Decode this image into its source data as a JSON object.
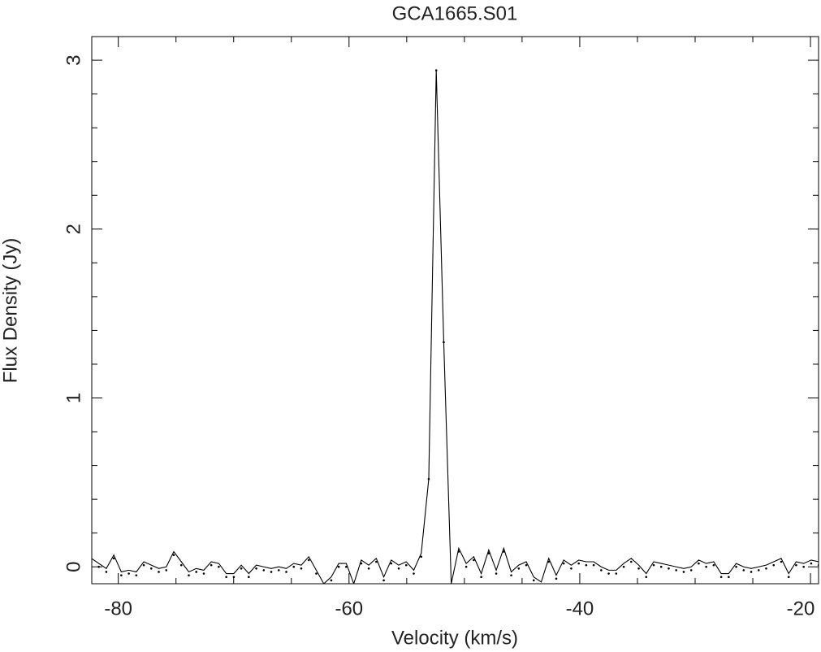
{
  "chart_data": {
    "type": "line",
    "title": "GCA1665.S01",
    "xlabel": "Velocity (km/s)",
    "ylabel": "Flux Density (Jy)",
    "x": [
      -82.34,
      -81.69,
      -81.04,
      -80.39,
      -79.74,
      -79.09,
      -78.44,
      -77.79,
      -77.14,
      -76.49,
      -75.84,
      -75.19,
      -74.54,
      -73.89,
      -73.24,
      -72.59,
      -71.94,
      -71.29,
      -70.64,
      -69.99,
      -69.34,
      -68.69,
      -68.04,
      -67.39,
      -66.74,
      -66.09,
      -65.44,
      -64.79,
      -64.14,
      -63.49,
      -62.84,
      -62.19,
      -61.54,
      -60.89,
      -60.24,
      -59.59,
      -58.94,
      -58.29,
      -57.64,
      -56.99,
      -56.34,
      -55.69,
      -55.04,
      -54.39,
      -53.74,
      -53.09,
      -52.44,
      -51.79,
      -51.14,
      -50.49,
      -49.84,
      -49.19,
      -48.54,
      -47.89,
      -47.24,
      -46.59,
      -45.94,
      -45.29,
      -44.64,
      -43.99,
      -43.34,
      -42.69,
      -42.04,
      -41.39,
      -40.74,
      -40.09,
      -39.44,
      -38.79,
      -38.14,
      -37.49,
      -36.84,
      -36.19,
      -35.54,
      -34.89,
      -34.24,
      -33.59,
      -32.94,
      -32.29,
      -31.64,
      -30.99,
      -30.34,
      -29.69,
      -29.04,
      -28.39,
      -27.74,
      -27.09,
      -26.44,
      -25.79,
      -25.14,
      -24.49,
      -23.84,
      -23.19,
      -22.54,
      -21.89,
      -21.24,
      -20.59,
      -19.94,
      -19.29
    ],
    "series": [
      {
        "color": "#000000",
        "style": "line",
        "values": [
          0.05,
          0.02,
          -0.01,
          0.07,
          -0.03,
          -0.02,
          -0.03,
          0.03,
          0.01,
          -0.01,
          0.0,
          0.09,
          0.03,
          -0.03,
          -0.01,
          -0.02,
          0.03,
          0.02,
          -0.04,
          -0.04,
          0.01,
          -0.04,
          0.01,
          0.0,
          -0.01,
          0.0,
          -0.01,
          0.02,
          0.01,
          0.06,
          -0.02,
          -0.1,
          -0.06,
          0.02,
          0.02,
          -0.1,
          0.04,
          0.01,
          0.05,
          -0.06,
          0.04,
          0.01,
          0.03,
          -0.02,
          0.08,
          0.52,
          2.94,
          1.33,
          -0.1,
          0.11,
          0.02,
          0.06,
          -0.04,
          0.1,
          -0.02,
          0.11,
          -0.03,
          0.01,
          0.03,
          -0.06,
          -0.09,
          0.05,
          -0.05,
          0.04,
          0.01,
          0.04,
          0.03,
          0.03,
          0.0,
          -0.02,
          -0.02,
          0.02,
          0.05,
          0.01,
          -0.04,
          0.03,
          0.02,
          0.01,
          0.0,
          -0.01,
          0.0,
          0.04,
          0.02,
          0.03,
          -0.04,
          -0.04,
          0.02,
          0.0,
          -0.01,
          0.0,
          0.01,
          0.03,
          0.05,
          -0.04,
          0.03,
          0.02,
          0.04,
          0.03
        ]
      },
      {
        "color": "#000000",
        "style": "dots",
        "values": [
          0.03,
          0.0,
          -0.03,
          0.05,
          -0.05,
          -0.04,
          -0.05,
          0.01,
          -0.01,
          -0.03,
          -0.02,
          0.07,
          0.01,
          -0.05,
          -0.03,
          -0.04,
          0.01,
          0.0,
          -0.06,
          -0.06,
          -0.01,
          -0.06,
          -0.01,
          -0.02,
          -0.03,
          -0.02,
          -0.03,
          0.0,
          -0.01,
          0.04,
          -0.04,
          -0.12,
          -0.08,
          0.0,
          0.0,
          -0.12,
          0.02,
          -0.01,
          0.03,
          -0.08,
          0.02,
          -0.01,
          0.01,
          -0.04,
          0.06,
          0.52,
          2.94,
          1.33,
          -0.12,
          0.09,
          0.0,
          0.04,
          -0.06,
          0.08,
          -0.04,
          0.09,
          -0.05,
          -0.01,
          0.01,
          -0.08,
          -0.11,
          0.03,
          -0.07,
          0.02,
          -0.01,
          0.02,
          0.01,
          0.01,
          -0.02,
          -0.04,
          -0.04,
          0.0,
          0.03,
          -0.01,
          -0.06,
          0.01,
          0.0,
          -0.01,
          -0.02,
          -0.03,
          -0.02,
          0.02,
          0.0,
          0.01,
          -0.06,
          -0.06,
          0.0,
          -0.02,
          -0.03,
          -0.02,
          -0.01,
          0.01,
          0.03,
          -0.06,
          0.01,
          0.0,
          0.02,
          0.01
        ]
      }
    ],
    "xlim": [
      -82.3,
      -19.3
    ],
    "ylim": [
      -0.1,
      3.14
    ],
    "xticks": [
      -80,
      -60,
      -40,
      -20
    ],
    "yticks": [
      0,
      1,
      2,
      3
    ],
    "xminorticks": [
      -75,
      -70,
      -65,
      -55,
      -50,
      -45,
      -35,
      -30,
      -25
    ],
    "yminorticks": [
      0.2,
      0.4,
      0.6,
      0.8,
      1.2,
      1.4,
      1.6,
      1.8,
      2.2,
      2.4,
      2.6,
      2.8
    ],
    "grid": false
  }
}
